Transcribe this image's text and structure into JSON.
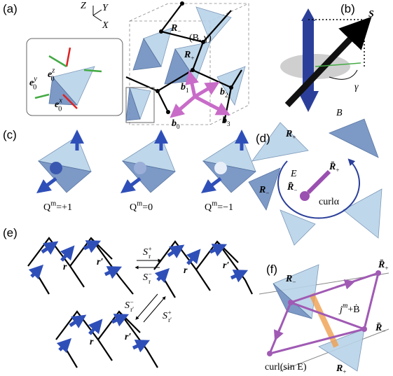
{
  "panel_a": {
    "label": "(a)",
    "axis_z": "Z",
    "axis_y": "Y",
    "axis_x": "X",
    "r_minus": {
      "base": "R",
      "sub": "−"
    },
    "b_gamma": "(B, γ)",
    "r_plus": {
      "base": "R",
      "sub": "+"
    },
    "b1": {
      "base": "b",
      "sub": "1"
    },
    "b2": {
      "base": "b",
      "sub": "2"
    },
    "b0": {
      "base": "b",
      "sub": "0"
    },
    "b3": {
      "base": "b",
      "sub": "3"
    },
    "e_y": {
      "base": "e",
      "sup": "y",
      "sub": "0"
    },
    "e_z": {
      "base": "e",
      "sup": "z",
      "sub": "0"
    },
    "e_x": {
      "base": "e",
      "sup": "x",
      "sub": "0"
    }
  },
  "panel_b": {
    "label": "(b)",
    "spin": "S",
    "angle": "γ",
    "field": "B"
  },
  "panel_c": {
    "label": "(c)",
    "charges": [
      {
        "base": "Q",
        "sup": "m",
        "rest": "=+1"
      },
      {
        "base": "Q",
        "sup": "m",
        "rest": "=0"
      },
      {
        "base": "Q",
        "sup": "m",
        "rest": "=−1"
      }
    ]
  },
  "panel_d": {
    "label": "(d)",
    "r_plus": {
      "base": "R",
      "sub": "+"
    },
    "r_minus": {
      "base": "R",
      "sub": "−"
    },
    "field": "E",
    "rbar_plus": {
      "base": "R̄",
      "sub": "+"
    },
    "rbar_minus": {
      "base": "R̄",
      "sub": "−"
    },
    "curl": "curlα"
  },
  "panel_e": {
    "label": "(e)",
    "r": "r",
    "r_prime": "r′",
    "s_plus": {
      "base": "S",
      "sup": "+",
      "sub": "r"
    },
    "s_minus": {
      "base": "S",
      "sup": "−",
      "sub": "r"
    },
    "s_prime_minus": {
      "base": "S",
      "sup": "−",
      "sub": "r′"
    },
    "s_prime_plus": {
      "base": "S",
      "sup": "+",
      "sub": "r′"
    }
  },
  "panel_f": {
    "label": "(f)",
    "rbar_plus": {
      "base": "R̄",
      "sub": "+"
    },
    "r_minus": {
      "base": "R",
      "sub": "−"
    },
    "current": {
      "base": "j",
      "sup": "m",
      "rest": "+Ḃ"
    },
    "rbar_minus": {
      "base": "R̄",
      "sub": "−"
    },
    "r_plus": {
      "base": "R",
      "sub": "+"
    },
    "curl": "curl(sin E)"
  }
}
